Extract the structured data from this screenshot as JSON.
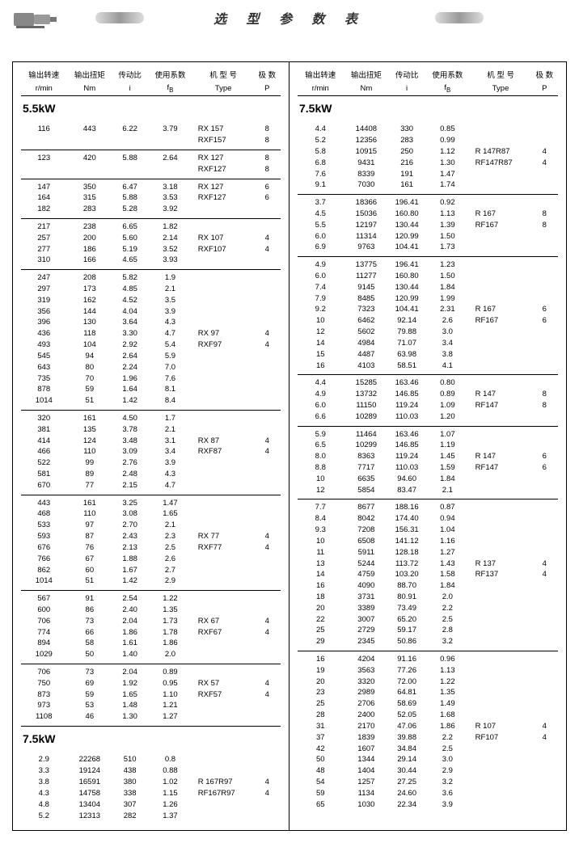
{
  "title": "选 型 参 数 表",
  "headers": {
    "h1a": "输出转速",
    "h1b": "r/min",
    "h2a": "输出扭矩",
    "h2b": "Nm",
    "h3a": "传动比",
    "h3b": "i",
    "h4a": "使用系数",
    "h4b": "f",
    "h5a": "机 型 号",
    "h5b": "Type",
    "h6a": "极 数",
    "h6b": "P"
  },
  "kw55": "5.5kW",
  "kw75": "7.5kW",
  "left": [
    [
      [
        "116",
        "443",
        "6.22",
        "3.79",
        "RX  157",
        "8"
      ],
      [
        "",
        "",
        "",
        "",
        "RXF157",
        "8"
      ]
    ],
    [
      [
        "123",
        "420",
        "5.88",
        "2.64",
        "RX  127",
        "8"
      ],
      [
        "",
        "",
        "",
        "",
        "RXF127",
        "8"
      ]
    ],
    [
      [
        "147",
        "350",
        "6.47",
        "3.18",
        "RX  127",
        "6"
      ],
      [
        "164",
        "315",
        "5.88",
        "3.53",
        "RXF127",
        "6"
      ],
      [
        "182",
        "283",
        "5.28",
        "3.92",
        "",
        ""
      ]
    ],
    [
      [
        "217",
        "238",
        "6.65",
        "1.82",
        "",
        ""
      ],
      [
        "257",
        "200",
        "5.60",
        "2.14",
        "RX  107",
        "4"
      ],
      [
        "277",
        "186",
        "5.19",
        "3.52",
        "RXF107",
        "4"
      ],
      [
        "310",
        "166",
        "4.65",
        "3.93",
        "",
        ""
      ]
    ],
    [
      [
        "247",
        "208",
        "5.82",
        "1.9",
        "",
        ""
      ],
      [
        "297",
        "173",
        "4.85",
        "2.1",
        "",
        ""
      ],
      [
        "319",
        "162",
        "4.52",
        "3.5",
        "",
        ""
      ],
      [
        "356",
        "144",
        "4.04",
        "3.9",
        "",
        ""
      ],
      [
        "396",
        "130",
        "3.64",
        "4.3",
        "",
        ""
      ],
      [
        "436",
        "118",
        "3.30",
        "4.7",
        "RX  97",
        "4"
      ],
      [
        "493",
        "104",
        "2.92",
        "5.4",
        "RXF97",
        "4"
      ],
      [
        "545",
        "94",
        "2.64",
        "5.9",
        "",
        ""
      ],
      [
        "643",
        "80",
        "2.24",
        "7.0",
        "",
        ""
      ],
      [
        "735",
        "70",
        "1.96",
        "7.6",
        "",
        ""
      ],
      [
        "878",
        "59",
        "1.64",
        "8.1",
        "",
        ""
      ],
      [
        "1014",
        "51",
        "1.42",
        "8.4",
        "",
        ""
      ]
    ],
    [
      [
        "320",
        "161",
        "4.50",
        "1.7",
        "",
        ""
      ],
      [
        "381",
        "135",
        "3.78",
        "2.1",
        "",
        ""
      ],
      [
        "414",
        "124",
        "3.48",
        "3.1",
        "RX  87",
        "4"
      ],
      [
        "466",
        "110",
        "3.09",
        "3.4",
        "RXF87",
        "4"
      ],
      [
        "522",
        "99",
        "2.76",
        "3.9",
        "",
        ""
      ],
      [
        "581",
        "89",
        "2.48",
        "4.3",
        "",
        ""
      ],
      [
        "670",
        "77",
        "2.15",
        "4.7",
        "",
        ""
      ]
    ],
    [
      [
        "443",
        "161",
        "3.25",
        "1.47",
        "",
        ""
      ],
      [
        "468",
        "110",
        "3.08",
        "1.65",
        "",
        ""
      ],
      [
        "533",
        "97",
        "2.70",
        "2.1",
        "",
        ""
      ],
      [
        "593",
        "87",
        "2.43",
        "2.3",
        "RX  77",
        "4"
      ],
      [
        "676",
        "76",
        "2.13",
        "2.5",
        "RXF77",
        "4"
      ],
      [
        "766",
        "67",
        "1.88",
        "2.6",
        "",
        ""
      ],
      [
        "862",
        "60",
        "1.67",
        "2.7",
        "",
        ""
      ],
      [
        "1014",
        "51",
        "1.42",
        "2.9",
        "",
        ""
      ]
    ],
    [
      [
        "567",
        "91",
        "2.54",
        "1.22",
        "",
        ""
      ],
      [
        "600",
        "86",
        "2.40",
        "1.35",
        "",
        ""
      ],
      [
        "706",
        "73",
        "2.04",
        "1.73",
        "RX  67",
        "4"
      ],
      [
        "774",
        "66",
        "1.86",
        "1.78",
        "RXF67",
        "4"
      ],
      [
        "894",
        "58",
        "1.61",
        "1.86",
        "",
        ""
      ],
      [
        "1029",
        "50",
        "1.40",
        "2.0",
        "",
        ""
      ]
    ],
    [
      [
        "706",
        "73",
        "2.04",
        "0.89",
        "",
        ""
      ],
      [
        "750",
        "69",
        "1.92",
        "0.95",
        "RX  57",
        "4"
      ],
      [
        "873",
        "59",
        "1.65",
        "1.10",
        "RXF57",
        "4"
      ],
      [
        "973",
        "53",
        "1.48",
        "1.21",
        "",
        ""
      ],
      [
        "1108",
        "46",
        "1.30",
        "1.27",
        "",
        ""
      ]
    ]
  ],
  "left75": [
    [
      [
        "2.9",
        "22268",
        "510",
        "0.8",
        "",
        ""
      ],
      [
        "3.3",
        "19124",
        "438",
        "0.88",
        "",
        ""
      ],
      [
        "3.8",
        "16591",
        "380",
        "1.02",
        "R  167R97",
        "4"
      ],
      [
        "4.3",
        "14758",
        "338",
        "1.15",
        "RF167R97",
        "4"
      ],
      [
        "4.8",
        "13404",
        "307",
        "1.26",
        "",
        ""
      ],
      [
        "5.2",
        "12313",
        "282",
        "1.37",
        "",
        ""
      ]
    ]
  ],
  "right": [
    [
      [
        "4.4",
        "14408",
        "330",
        "0.85",
        "",
        ""
      ],
      [
        "5.2",
        "12356",
        "283",
        "0.99",
        "",
        ""
      ],
      [
        "5.8",
        "10915",
        "250",
        "1.12",
        "R  147R87",
        "4"
      ],
      [
        "6.8",
        "9431",
        "216",
        "1.30",
        "RF147R87",
        "4"
      ],
      [
        "7.6",
        "8339",
        "191",
        "1.47",
        "",
        ""
      ],
      [
        "9.1",
        "7030",
        "161",
        "1.74",
        "",
        ""
      ]
    ],
    [
      [
        "3.7",
        "18366",
        "196.41",
        "0.92",
        "",
        ""
      ],
      [
        "4.5",
        "15036",
        "160.80",
        "1.13",
        "R  167",
        "8"
      ],
      [
        "5.5",
        "12197",
        "130.44",
        "1.39",
        "RF167",
        "8"
      ],
      [
        "6.0",
        "11314",
        "120.99",
        "1.50",
        "",
        ""
      ],
      [
        "6.9",
        "9763",
        "104.41",
        "1.73",
        "",
        ""
      ]
    ],
    [
      [
        "4.9",
        "13775",
        "196.41",
        "1.23",
        "",
        ""
      ],
      [
        "6.0",
        "11277",
        "160.80",
        "1.50",
        "",
        ""
      ],
      [
        "7.4",
        "9145",
        "130.44",
        "1.84",
        "",
        ""
      ],
      [
        "7.9",
        "8485",
        "120.99",
        "1.99",
        "",
        ""
      ],
      [
        "9.2",
        "7323",
        "104.41",
        "2.31",
        "R  167",
        "6"
      ],
      [
        "10",
        "6462",
        "92.14",
        "2.6",
        "RF167",
        "6"
      ],
      [
        "12",
        "5602",
        "79.88",
        "3.0",
        "",
        ""
      ],
      [
        "14",
        "4984",
        "71.07",
        "3.4",
        "",
        ""
      ],
      [
        "15",
        "4487",
        "63.98",
        "3.8",
        "",
        ""
      ],
      [
        "16",
        "4103",
        "58.51",
        "4.1",
        "",
        ""
      ]
    ],
    [
      [
        "4.4",
        "15285",
        "163.46",
        "0.80",
        "",
        ""
      ],
      [
        "4.9",
        "13732",
        "146.85",
        "0.89",
        "R  147",
        "8"
      ],
      [
        "6.0",
        "11150",
        "119.24",
        "1.09",
        "RF147",
        "8"
      ],
      [
        "6.6",
        "10289",
        "110.03",
        "1.20",
        "",
        ""
      ]
    ],
    [
      [
        "5.9",
        "11464",
        "163.46",
        "1.07",
        "",
        ""
      ],
      [
        "6.5",
        "10299",
        "146.85",
        "1.19",
        "",
        ""
      ],
      [
        "8.0",
        "8363",
        "119.24",
        "1.45",
        "R  147",
        "6"
      ],
      [
        "8.8",
        "7717",
        "110.03",
        "1.59",
        "RF147",
        "6"
      ],
      [
        "10",
        "6635",
        "94.60",
        "1.84",
        "",
        ""
      ],
      [
        "12",
        "5854",
        "83.47",
        "2.1",
        "",
        ""
      ]
    ],
    [
      [
        "7.7",
        "8677",
        "188.16",
        "0.87",
        "",
        ""
      ],
      [
        "8.4",
        "8042",
        "174.40",
        "0.94",
        "",
        ""
      ],
      [
        "9.3",
        "7208",
        "156.31",
        "1.04",
        "",
        ""
      ],
      [
        "10",
        "6508",
        "141.12",
        "1.16",
        "",
        ""
      ],
      [
        "11",
        "5911",
        "128.18",
        "1.27",
        "",
        ""
      ],
      [
        "13",
        "5244",
        "113.72",
        "1.43",
        "R  137",
        "4"
      ],
      [
        "14",
        "4759",
        "103.20",
        "1.58",
        "RF137",
        "4"
      ],
      [
        "16",
        "4090",
        "88.70",
        "1.84",
        "",
        ""
      ],
      [
        "18",
        "3731",
        "80.91",
        "2.0",
        "",
        ""
      ],
      [
        "20",
        "3389",
        "73.49",
        "2.2",
        "",
        ""
      ],
      [
        "22",
        "3007",
        "65.20",
        "2.5",
        "",
        ""
      ],
      [
        "25",
        "2729",
        "59.17",
        "2.8",
        "",
        ""
      ],
      [
        "29",
        "2345",
        "50.86",
        "3.2",
        "",
        ""
      ]
    ],
    [
      [
        "16",
        "4204",
        "91.16",
        "0.96",
        "",
        ""
      ],
      [
        "19",
        "3563",
        "77.26",
        "1.13",
        "",
        ""
      ],
      [
        "20",
        "3320",
        "72.00",
        "1.22",
        "",
        ""
      ],
      [
        "23",
        "2989",
        "64.81",
        "1.35",
        "",
        ""
      ],
      [
        "25",
        "2706",
        "58.69",
        "1.49",
        "",
        ""
      ],
      [
        "28",
        "2400",
        "52.05",
        "1.68",
        "",
        ""
      ],
      [
        "31",
        "2170",
        "47.06",
        "1.86",
        "R  107",
        "4"
      ],
      [
        "37",
        "1839",
        "39.88",
        "2.2",
        "RF107",
        "4"
      ],
      [
        "42",
        "1607",
        "34.84",
        "2.5",
        "",
        ""
      ],
      [
        "50",
        "1344",
        "29.14",
        "3.0",
        "",
        ""
      ],
      [
        "48",
        "1404",
        "30.44",
        "2.9",
        "",
        ""
      ],
      [
        "54",
        "1257",
        "27.25",
        "3.2",
        "",
        ""
      ],
      [
        "59",
        "1134",
        "24.60",
        "3.6",
        "",
        ""
      ],
      [
        "65",
        "1030",
        "22.34",
        "3.9",
        "",
        ""
      ]
    ]
  ]
}
